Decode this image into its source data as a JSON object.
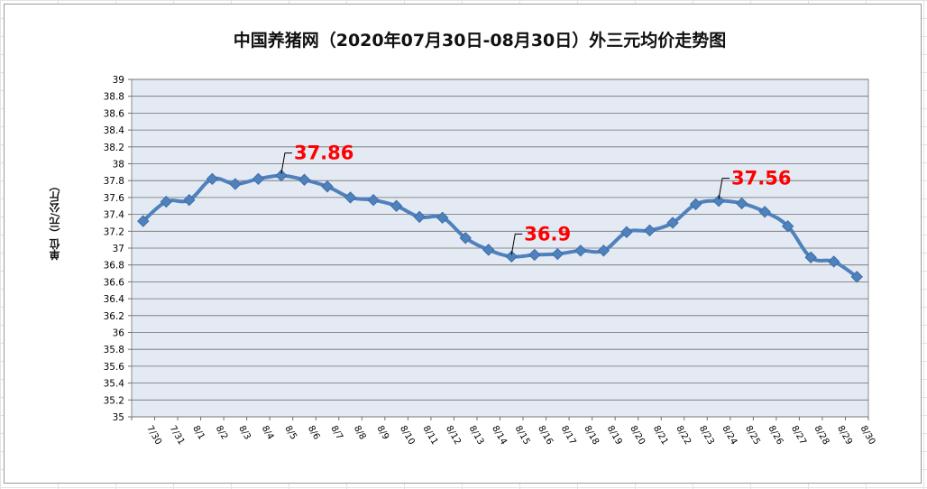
{
  "title": "中国养猪网（2020年07月30日-08月30日）外三元均价走势图",
  "chart_data": {
    "type": "line",
    "title": "中国养猪网（2020年07月30日-08月30日）外三元均价走势图",
    "xlabel": "",
    "ylabel": "单位（元/公斤）",
    "ylim": [
      35,
      39
    ],
    "ytick_step": 0.2,
    "yticks": [
      "35",
      "35.2",
      "35.4",
      "35.6",
      "35.8",
      "36",
      "36.2",
      "36.4",
      "36.6",
      "36.8",
      "37",
      "37.2",
      "37.4",
      "37.6",
      "37.8",
      "38",
      "38.2",
      "38.4",
      "38.6",
      "38.8",
      "39"
    ],
    "categories": [
      "7/30",
      "7/31",
      "8/1",
      "8/2",
      "8/3",
      "8/4",
      "8/5",
      "8/6",
      "8/7",
      "8/8",
      "8/9",
      "8/10",
      "8/11",
      "8/12",
      "8/13",
      "8/14",
      "8/15",
      "8/16",
      "8/17",
      "8/18",
      "8/19",
      "8/20",
      "8/21",
      "8/22",
      "8/23",
      "8/24",
      "8/25",
      "8/26",
      "8/27",
      "8/28",
      "8/29",
      "8/30"
    ],
    "series": [
      {
        "values": [
          37.32,
          37.55,
          37.57,
          37.82,
          37.76,
          37.82,
          37.86,
          37.81,
          37.73,
          37.6,
          37.57,
          37.5,
          37.37,
          37.36,
          37.12,
          36.98,
          36.9,
          36.92,
          36.93,
          36.97,
          36.97,
          37.19,
          37.21,
          37.3,
          37.52,
          37.56,
          37.53,
          37.43,
          37.26,
          36.89,
          36.84,
          36.66
        ],
        "color": "#4f81bd"
      }
    ],
    "annotations": [
      {
        "category": "8/5",
        "value": 37.86,
        "label": "37.86",
        "color": "#ff0000"
      },
      {
        "category": "8/15",
        "value": 36.9,
        "label": "36.9",
        "color": "#ff0000"
      },
      {
        "category": "8/24",
        "value": 37.56,
        "label": "37.56",
        "color": "#ff0000"
      }
    ],
    "plot_background": "#e4eaf3",
    "grid": true
  }
}
